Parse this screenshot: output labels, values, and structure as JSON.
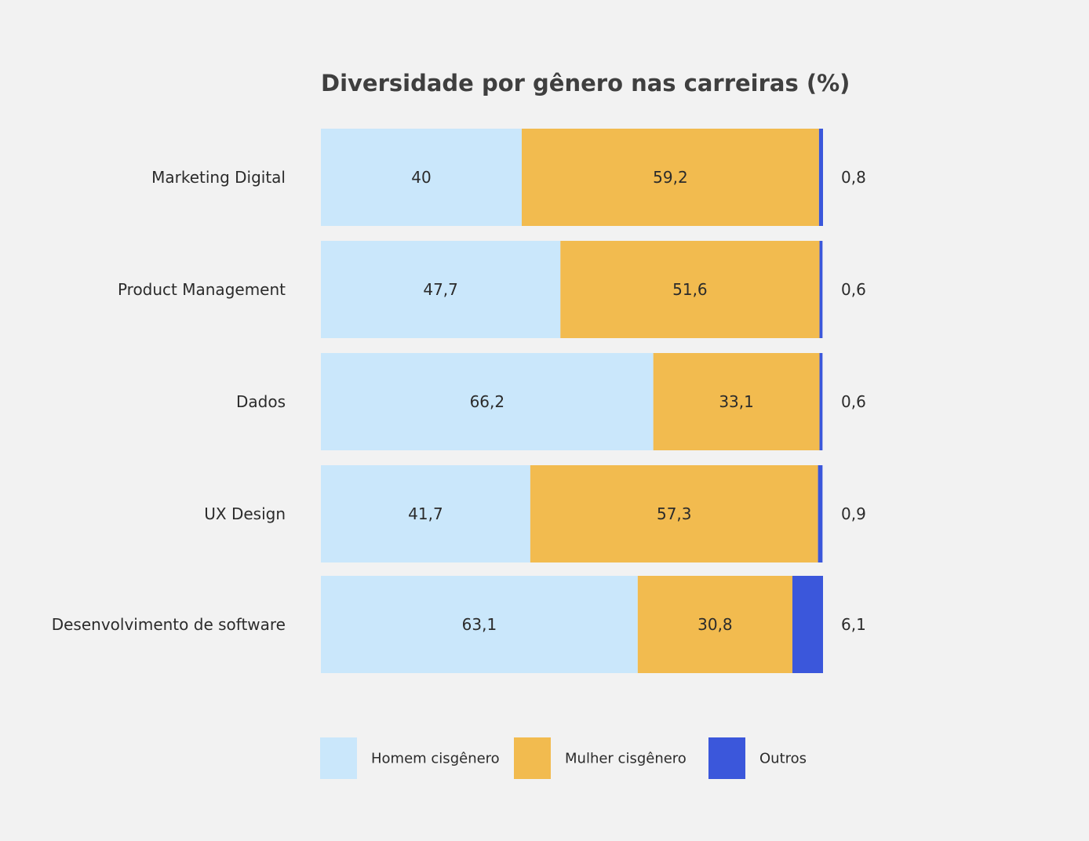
{
  "colors": {
    "background": "#f2f2f2",
    "homem": "#cae7fb",
    "mulher": "#f2bb4f",
    "outros": "#3b57db",
    "text": "#2b2b2b",
    "title": "#3f3f3f"
  },
  "chart_data": {
    "type": "bar",
    "orientation": "horizontal",
    "stacked": true,
    "title": "Diversidade por gênero nas carreiras (%)",
    "xlabel": "",
    "ylabel": "",
    "xlim": [
      0,
      100
    ],
    "grid": false,
    "legend_position": "bottom",
    "categories": [
      "Marketing Digital",
      "Product Management",
      "Dados",
      "UX Design",
      "Desenvolvimento de software"
    ],
    "series": [
      {
        "name": "Homem cisgênero",
        "color": "#cae7fb",
        "values": [
          40,
          47.7,
          66.2,
          41.7,
          63.1
        ],
        "labels": [
          "40",
          "47,7",
          "66,2",
          "41,7",
          "63,1"
        ]
      },
      {
        "name": "Mulher cisgênero",
        "color": "#f2bb4f",
        "values": [
          59.2,
          51.6,
          33.1,
          57.3,
          30.8
        ],
        "labels": [
          "59,2",
          "51,6",
          "33,1",
          "57,3",
          "30,8"
        ]
      },
      {
        "name": "Outros",
        "color": "#3b57db",
        "values": [
          0.8,
          0.6,
          0.6,
          0.9,
          6.1
        ],
        "labels": [
          "0,8",
          "0,6",
          "0,6",
          "0,9",
          "6,1"
        ]
      }
    ]
  }
}
